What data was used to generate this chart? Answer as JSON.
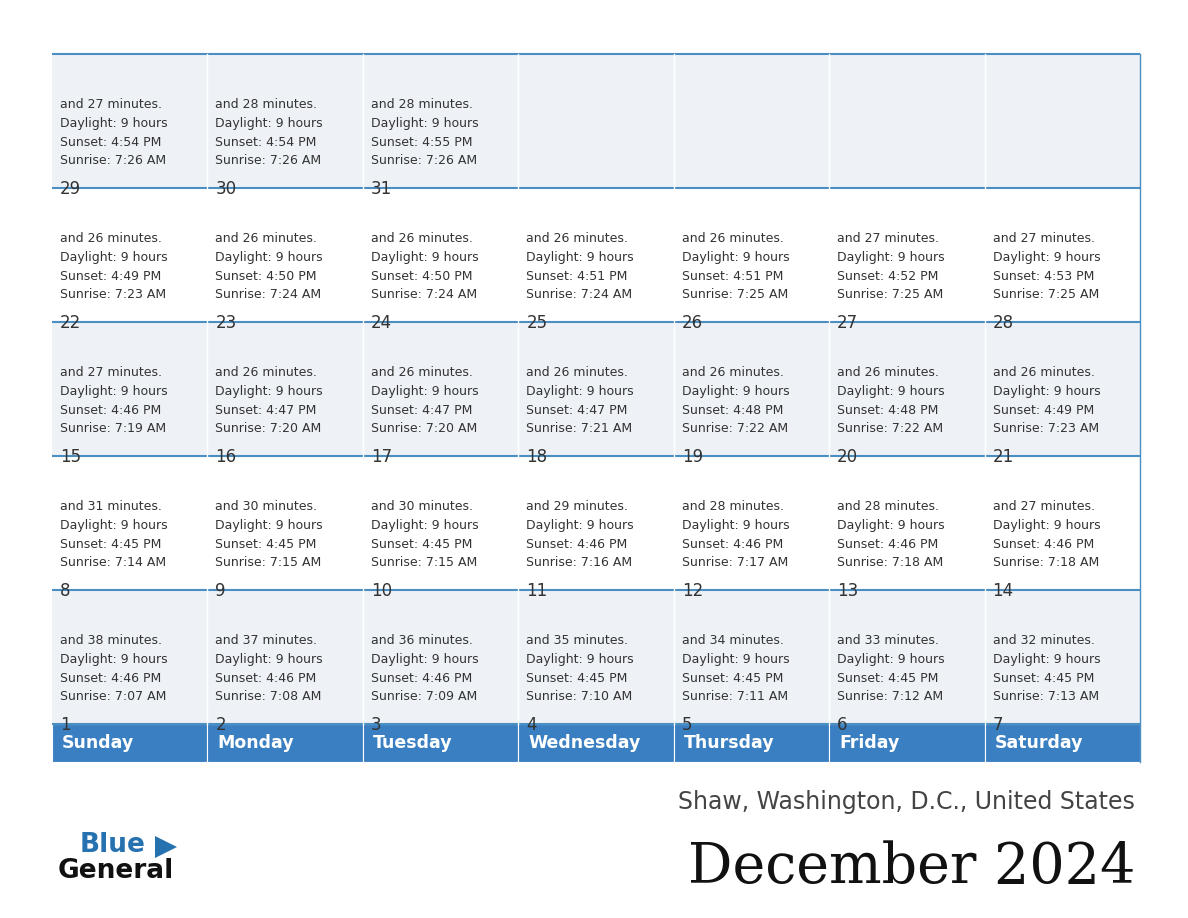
{
  "title": "December 2024",
  "subtitle": "Shaw, Washington, D.C., United States",
  "days_of_week": [
    "Sunday",
    "Monday",
    "Tuesday",
    "Wednesday",
    "Thursday",
    "Friday",
    "Saturday"
  ],
  "header_bg": "#3a7fc1",
  "header_text": "#ffffff",
  "row_bg_light": "#eef2f7",
  "row_bg_white": "#ffffff",
  "border_color": "#4a8ec2",
  "text_color": "#333333",
  "title_color": "#111111",
  "subtitle_color": "#444444",
  "calendar_data": [
    [
      {
        "day": 1,
        "sunrise": "7:07 AM",
        "sunset": "4:46 PM",
        "daylight_hrs": 9,
        "daylight_min": 38
      },
      {
        "day": 2,
        "sunrise": "7:08 AM",
        "sunset": "4:46 PM",
        "daylight_hrs": 9,
        "daylight_min": 37
      },
      {
        "day": 3,
        "sunrise": "7:09 AM",
        "sunset": "4:46 PM",
        "daylight_hrs": 9,
        "daylight_min": 36
      },
      {
        "day": 4,
        "sunrise": "7:10 AM",
        "sunset": "4:45 PM",
        "daylight_hrs": 9,
        "daylight_min": 35
      },
      {
        "day": 5,
        "sunrise": "7:11 AM",
        "sunset": "4:45 PM",
        "daylight_hrs": 9,
        "daylight_min": 34
      },
      {
        "day": 6,
        "sunrise": "7:12 AM",
        "sunset": "4:45 PM",
        "daylight_hrs": 9,
        "daylight_min": 33
      },
      {
        "day": 7,
        "sunrise": "7:13 AM",
        "sunset": "4:45 PM",
        "daylight_hrs": 9,
        "daylight_min": 32
      }
    ],
    [
      {
        "day": 8,
        "sunrise": "7:14 AM",
        "sunset": "4:45 PM",
        "daylight_hrs": 9,
        "daylight_min": 31
      },
      {
        "day": 9,
        "sunrise": "7:15 AM",
        "sunset": "4:45 PM",
        "daylight_hrs": 9,
        "daylight_min": 30
      },
      {
        "day": 10,
        "sunrise": "7:15 AM",
        "sunset": "4:45 PM",
        "daylight_hrs": 9,
        "daylight_min": 30
      },
      {
        "day": 11,
        "sunrise": "7:16 AM",
        "sunset": "4:46 PM",
        "daylight_hrs": 9,
        "daylight_min": 29
      },
      {
        "day": 12,
        "sunrise": "7:17 AM",
        "sunset": "4:46 PM",
        "daylight_hrs": 9,
        "daylight_min": 28
      },
      {
        "day": 13,
        "sunrise": "7:18 AM",
        "sunset": "4:46 PM",
        "daylight_hrs": 9,
        "daylight_min": 28
      },
      {
        "day": 14,
        "sunrise": "7:18 AM",
        "sunset": "4:46 PM",
        "daylight_hrs": 9,
        "daylight_min": 27
      }
    ],
    [
      {
        "day": 15,
        "sunrise": "7:19 AM",
        "sunset": "4:46 PM",
        "daylight_hrs": 9,
        "daylight_min": 27
      },
      {
        "day": 16,
        "sunrise": "7:20 AM",
        "sunset": "4:47 PM",
        "daylight_hrs": 9,
        "daylight_min": 26
      },
      {
        "day": 17,
        "sunrise": "7:20 AM",
        "sunset": "4:47 PM",
        "daylight_hrs": 9,
        "daylight_min": 26
      },
      {
        "day": 18,
        "sunrise": "7:21 AM",
        "sunset": "4:47 PM",
        "daylight_hrs": 9,
        "daylight_min": 26
      },
      {
        "day": 19,
        "sunrise": "7:22 AM",
        "sunset": "4:48 PM",
        "daylight_hrs": 9,
        "daylight_min": 26
      },
      {
        "day": 20,
        "sunrise": "7:22 AM",
        "sunset": "4:48 PM",
        "daylight_hrs": 9,
        "daylight_min": 26
      },
      {
        "day": 21,
        "sunrise": "7:23 AM",
        "sunset": "4:49 PM",
        "daylight_hrs": 9,
        "daylight_min": 26
      }
    ],
    [
      {
        "day": 22,
        "sunrise": "7:23 AM",
        "sunset": "4:49 PM",
        "daylight_hrs": 9,
        "daylight_min": 26
      },
      {
        "day": 23,
        "sunrise": "7:24 AM",
        "sunset": "4:50 PM",
        "daylight_hrs": 9,
        "daylight_min": 26
      },
      {
        "day": 24,
        "sunrise": "7:24 AM",
        "sunset": "4:50 PM",
        "daylight_hrs": 9,
        "daylight_min": 26
      },
      {
        "day": 25,
        "sunrise": "7:24 AM",
        "sunset": "4:51 PM",
        "daylight_hrs": 9,
        "daylight_min": 26
      },
      {
        "day": 26,
        "sunrise": "7:25 AM",
        "sunset": "4:51 PM",
        "daylight_hrs": 9,
        "daylight_min": 26
      },
      {
        "day": 27,
        "sunrise": "7:25 AM",
        "sunset": "4:52 PM",
        "daylight_hrs": 9,
        "daylight_min": 27
      },
      {
        "day": 28,
        "sunrise": "7:25 AM",
        "sunset": "4:53 PM",
        "daylight_hrs": 9,
        "daylight_min": 27
      }
    ],
    [
      {
        "day": 29,
        "sunrise": "7:26 AM",
        "sunset": "4:54 PM",
        "daylight_hrs": 9,
        "daylight_min": 27
      },
      {
        "day": 30,
        "sunrise": "7:26 AM",
        "sunset": "4:54 PM",
        "daylight_hrs": 9,
        "daylight_min": 28
      },
      {
        "day": 31,
        "sunrise": "7:26 AM",
        "sunset": "4:55 PM",
        "daylight_hrs": 9,
        "daylight_min": 28
      },
      null,
      null,
      null,
      null
    ]
  ]
}
